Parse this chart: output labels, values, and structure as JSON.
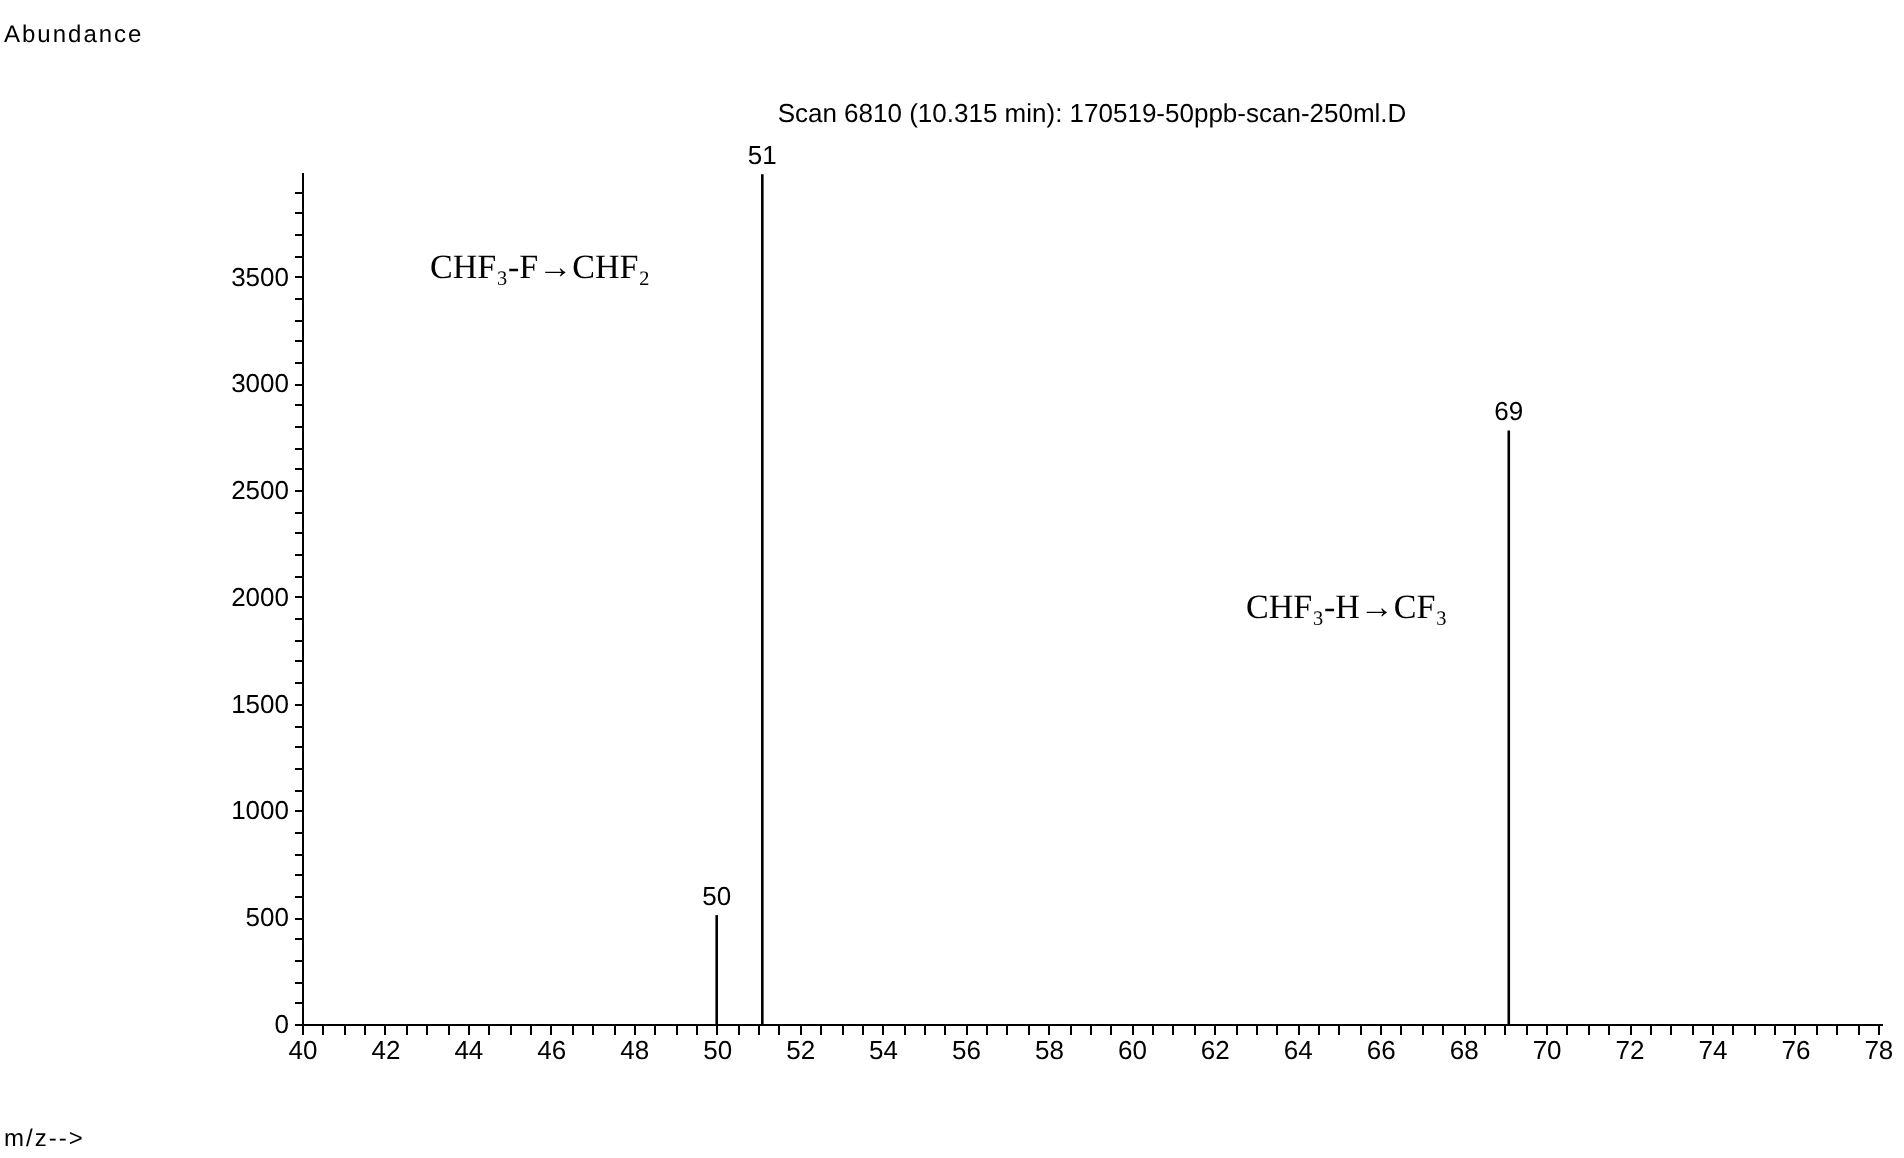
{
  "chart_data": {
    "type": "bar",
    "title": "Scan 6810 (10.315 min): 170519-50ppb-scan-250ml.D",
    "x": [
      50,
      51.1,
      69.1
    ],
    "values": [
      510,
      3980,
      2780
    ],
    "color": "#000000",
    "xlim": [
      40,
      78.1
    ],
    "ylim": [
      0,
      3990
    ],
    "xticks": [
      40,
      {
        "value": 40.5,
        "label": null
      },
      {
        "value": 41,
        "label": null
      },
      {
        "value": 41.5,
        "label": null
      },
      42,
      {
        "value": 42.5,
        "label": null
      },
      {
        "value": 43,
        "label": null
      },
      {
        "value": 43.5,
        "label": null
      },
      44,
      {
        "value": 44.5,
        "label": null
      },
      {
        "value": 45,
        "label": null
      },
      {
        "value": 45.5,
        "label": null
      },
      46,
      {
        "value": 46.5,
        "label": null
      },
      {
        "value": 47,
        "label": null
      },
      {
        "value": 47.5,
        "label": null
      },
      48,
      {
        "value": 48.5,
        "label": null
      },
      {
        "value": 49,
        "label": null
      },
      {
        "value": 49.5,
        "label": null
      },
      50,
      {
        "value": 50.5,
        "label": null
      },
      {
        "value": 51,
        "label": null
      },
      {
        "value": 51.5,
        "label": null
      },
      52,
      {
        "value": 52.5,
        "label": null
      },
      {
        "value": 53,
        "label": null
      },
      {
        "value": 53.5,
        "label": null
      },
      54,
      {
        "value": 54.5,
        "label": null
      },
      {
        "value": 55,
        "label": null
      },
      {
        "value": 55.5,
        "label": null
      },
      56,
      {
        "value": 56.5,
        "label": null
      },
      {
        "value": 57,
        "label": null
      },
      {
        "value": 57.5,
        "label": null
      },
      58,
      {
        "value": 58.5,
        "label": null
      },
      {
        "value": 59,
        "label": null
      },
      {
        "value": 59.5,
        "label": null
      },
      60,
      {
        "value": 60.5,
        "label": null
      },
      {
        "value": 61,
        "label": null
      },
      {
        "value": 61.5,
        "label": null
      },
      62,
      {
        "value": 62.5,
        "label": null
      },
      {
        "value": 63,
        "label": null
      },
      {
        "value": 63.5,
        "label": null
      },
      64,
      {
        "value": 64.5,
        "label": null
      },
      {
        "value": 65,
        "label": null
      },
      {
        "value": 65.5,
        "label": null
      },
      66,
      {
        "value": 66.5,
        "label": null
      },
      {
        "value": 67,
        "label": null
      },
      {
        "value": 67.5,
        "label": null
      },
      68,
      {
        "value": 68.5,
        "label": null
      },
      {
        "value": 69,
        "label": null
      },
      {
        "value": 69.5,
        "label": null
      },
      70,
      {
        "value": 70.5,
        "label": null
      },
      {
        "value": 71,
        "label": null
      },
      {
        "value": 71.5,
        "label": null
      },
      72,
      {
        "value": 72.5,
        "label": null
      },
      {
        "value": 73,
        "label": null
      },
      {
        "value": 73.5,
        "label": null
      },
      74,
      {
        "value": 74.5,
        "label": null
      },
      {
        "value": 75,
        "label": null
      },
      {
        "value": 75.5,
        "label": null
      },
      76,
      {
        "value": 76.5,
        "label": null
      },
      {
        "value": 77,
        "label": null
      },
      {
        "value": 77.5,
        "label": null
      },
      78
    ],
    "yticks": [
      0,
      {
        "value": 100,
        "label": null
      },
      {
        "value": 200,
        "label": null
      },
      {
        "value": 300,
        "label": null
      },
      {
        "value": 400,
        "label": null
      },
      500,
      {
        "value": 600,
        "label": null
      },
      {
        "value": 700,
        "label": null
      },
      {
        "value": 800,
        "label": null
      },
      {
        "value": 900,
        "label": null
      },
      1000,
      {
        "value": 1100,
        "label": null
      },
      {
        "value": 1200,
        "label": null
      },
      {
        "value": 1300,
        "label": null
      },
      {
        "value": 1400,
        "label": null
      },
      1500,
      {
        "value": 1600,
        "label": null
      },
      {
        "value": 1700,
        "label": null
      },
      {
        "value": 1800,
        "label": null
      },
      {
        "value": 1900,
        "label": null
      },
      2000,
      {
        "value": 2100,
        "label": null
      },
      {
        "value": 2200,
        "label": null
      },
      {
        "value": 2300,
        "label": null
      },
      {
        "value": 2400,
        "label": null
      },
      2500,
      {
        "value": 2600,
        "label": null
      },
      {
        "value": 2700,
        "label": null
      },
      {
        "value": 2800,
        "label": null
      },
      {
        "value": 2900,
        "label": null
      },
      3000,
      {
        "value": 3100,
        "label": null
      },
      {
        "value": 3200,
        "label": null
      },
      {
        "value": 3300,
        "label": null
      },
      {
        "value": 3400,
        "label": null
      },
      3500,
      {
        "value": 3600,
        "label": null
      },
      {
        "value": 3700,
        "label": null
      },
      {
        "value": 3800,
        "label": null
      },
      {
        "value": 3900,
        "label": null
      }
    ],
    "annotations": [
      "Abundance",
      "m/z-->",
      "CHF₃-F→CHF₂",
      "CHF₃-H→CF₃",
      {
        "text": "50",
        "x": 50,
        "y": 510
      },
      {
        "text": "51",
        "x": 51.1,
        "y": 3980
      },
      {
        "text": "69",
        "x": 69.1,
        "y": 2780
      }
    ]
  }
}
